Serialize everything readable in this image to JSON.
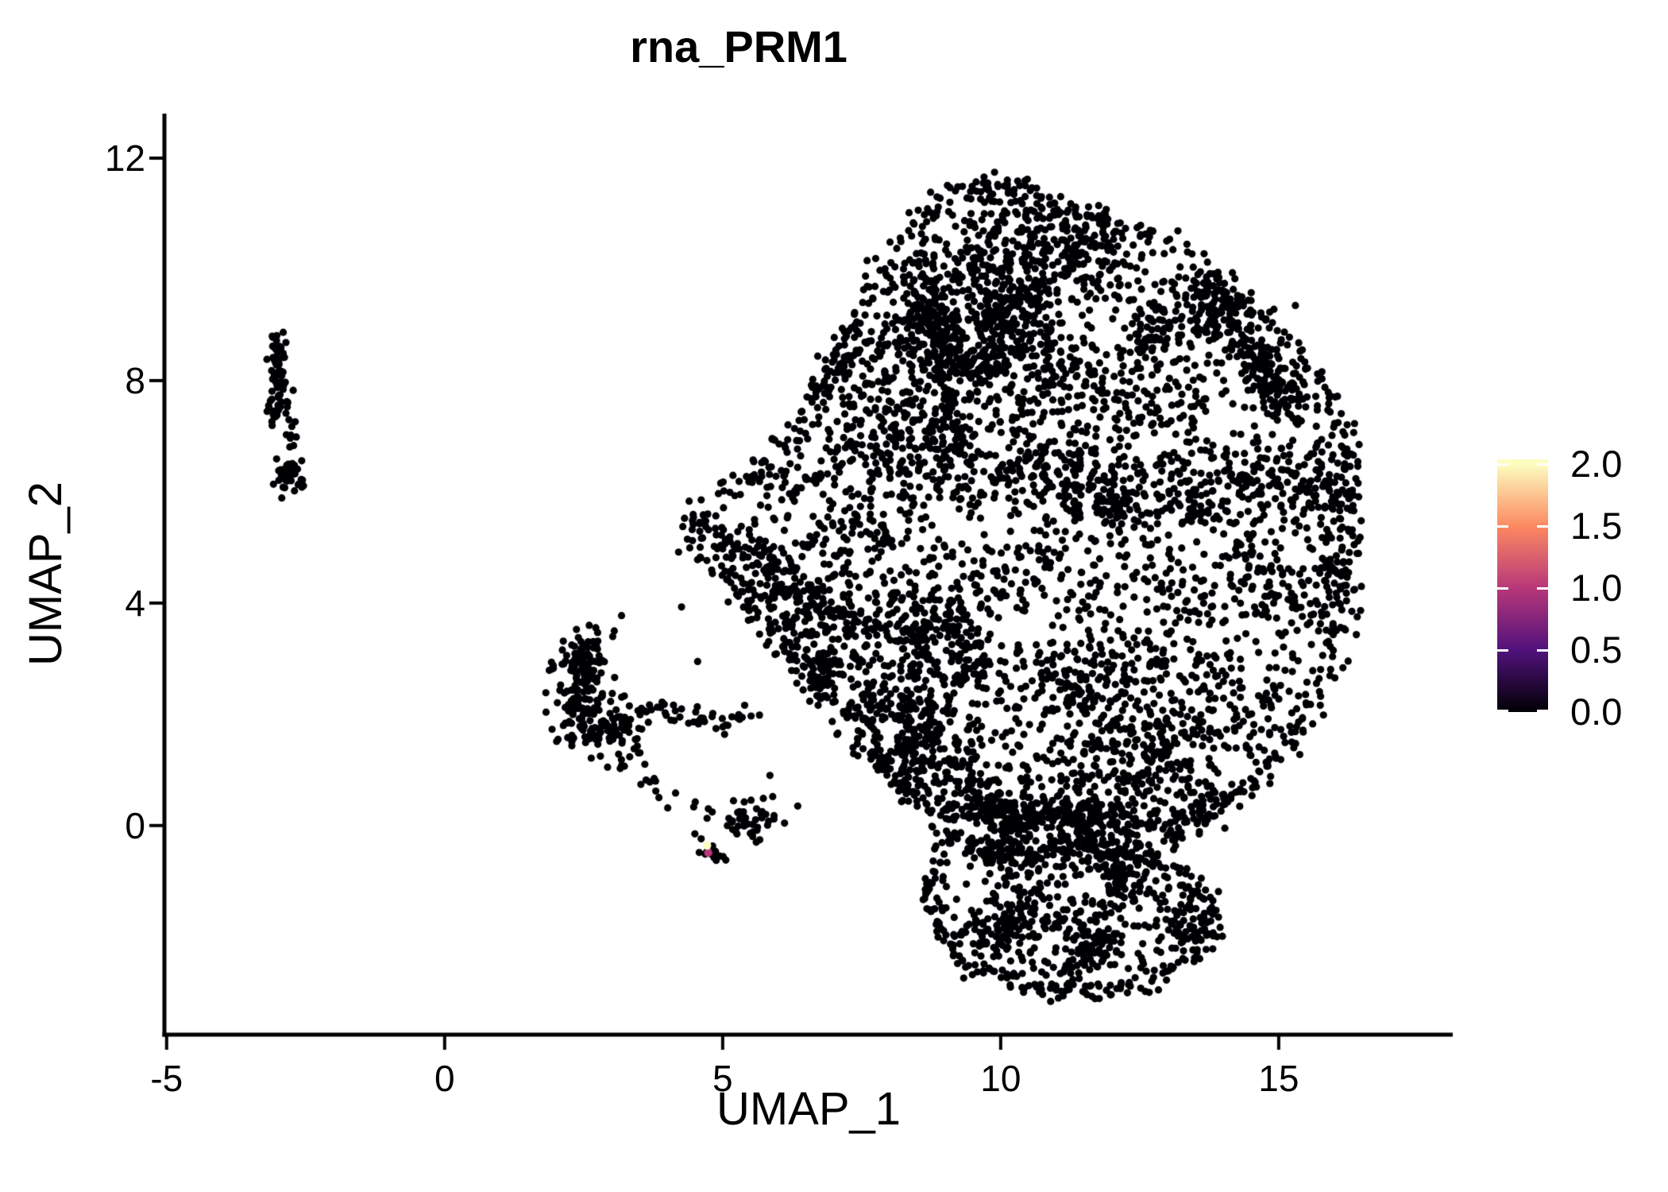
{
  "title": "rna_PRM1",
  "chart_data": {
    "type": "scatter",
    "title": "rna_PRM1",
    "xlabel": "UMAP_1",
    "ylabel": "UMAP_2",
    "xlim": [
      -5.04,
      18.13
    ],
    "ylim": [
      -3.76,
      12.8
    ],
    "grid": false,
    "x_ticks": [
      {
        "value": -5,
        "label": "-5"
      },
      {
        "value": 0,
        "label": "0"
      },
      {
        "value": 5,
        "label": "5"
      },
      {
        "value": 10,
        "label": "10"
      },
      {
        "value": 15,
        "label": "15"
      }
    ],
    "y_ticks": [
      {
        "value": 0,
        "label": "0"
      },
      {
        "value": 4,
        "label": "4"
      },
      {
        "value": 8,
        "label": "8"
      },
      {
        "value": 12,
        "label": "12"
      }
    ],
    "point_color": "#000004",
    "point_radius_px": 4.6,
    "legend": {
      "position": "right",
      "colormap": "magma",
      "range": [
        0,
        2.04
      ],
      "stops": [
        {
          "t": 0.0,
          "color": "#000004"
        },
        {
          "t": 0.25,
          "color": "#51127C"
        },
        {
          "t": 0.5,
          "color": "#B73779"
        },
        {
          "t": 0.75,
          "color": "#FC8961"
        },
        {
          "t": 1.0,
          "color": "#FCFDBF"
        }
      ],
      "ticks": [
        {
          "value": 2.0,
          "label": "2.0"
        },
        {
          "value": 1.5,
          "label": "1.5"
        },
        {
          "value": 1.0,
          "label": "1.0"
        },
        {
          "value": 0.5,
          "label": "0.5"
        },
        {
          "value": 0.0,
          "label": "0.0"
        }
      ]
    },
    "highlighted_cells": [
      {
        "x": 4.74,
        "y": -0.49,
        "value": 1.0,
        "color": "#B73779"
      },
      {
        "x": 4.72,
        "y": -0.36,
        "value": 2.0,
        "color": "#FCFDBF"
      }
    ],
    "seed": 1234567,
    "clusters": [
      {
        "name": "left-strand-upper",
        "type": "path",
        "points": [
          [
            -2.92,
            8.72
          ],
          [
            -3.03,
            8.25
          ],
          [
            -2.95,
            7.85
          ],
          [
            -3.02,
            7.45
          ],
          [
            -2.88,
            7.3
          ]
        ],
        "count": 78,
        "jitter": 0.1
      },
      {
        "name": "left-strand-mid",
        "type": "gauss",
        "center": [
          -2.8,
          6.95
        ],
        "sd": [
          0.1,
          0.12
        ],
        "count": 7
      },
      {
        "name": "left-strand-lower",
        "type": "gauss",
        "center": [
          -2.78,
          6.3
        ],
        "sd": [
          0.12,
          0.2
        ],
        "count": 42
      },
      {
        "name": "mid-blob-top",
        "type": "gauss",
        "center": [
          2.55,
          3.0
        ],
        "sd": [
          0.22,
          0.28
        ],
        "count": 70
      },
      {
        "name": "mid-blob-left",
        "type": "gauss",
        "center": [
          2.38,
          2.3
        ],
        "sd": [
          0.2,
          0.42
        ],
        "count": 85
      },
      {
        "name": "mid-blob-right",
        "type": "gauss",
        "center": [
          2.95,
          1.75
        ],
        "sd": [
          0.33,
          0.3
        ],
        "count": 90
      },
      {
        "name": "mid-chain",
        "type": "path",
        "points": [
          [
            3.5,
            2.1
          ],
          [
            4.35,
            2.0
          ],
          [
            4.95,
            1.9
          ],
          [
            5.6,
            1.95
          ]
        ],
        "count": 42,
        "jitter": 0.09
      },
      {
        "name": "mid-trail",
        "type": "path",
        "points": [
          [
            3.25,
            1.25
          ],
          [
            3.8,
            0.75
          ],
          [
            4.35,
            0.4
          ]
        ],
        "count": 16,
        "jitter": 0.14
      },
      {
        "name": "mid-lower-clump",
        "type": "gauss",
        "center": [
          5.45,
          0.08
        ],
        "sd": [
          0.32,
          0.17
        ],
        "count": 48
      },
      {
        "name": "expression-clump",
        "type": "gauss",
        "center": [
          4.78,
          -0.5
        ],
        "sd": [
          0.14,
          0.1
        ],
        "count": 14
      },
      {
        "name": "main-blob",
        "type": "polygon-clumps",
        "polygon": [
          [
            9.2,
            11.45
          ],
          [
            10.15,
            11.62
          ],
          [
            10.85,
            11.25
          ],
          [
            11.8,
            10.95
          ],
          [
            12.7,
            10.6
          ],
          [
            13.7,
            10.0
          ],
          [
            14.65,
            9.3
          ],
          [
            15.35,
            8.55
          ],
          [
            15.95,
            7.65
          ],
          [
            16.3,
            6.6
          ],
          [
            16.35,
            5.4
          ],
          [
            16.25,
            4.2
          ],
          [
            16.05,
            3.0
          ],
          [
            15.55,
            1.9
          ],
          [
            14.85,
            1.0
          ],
          [
            14.05,
            0.3
          ],
          [
            13.2,
            -0.25
          ],
          [
            12.3,
            -0.55
          ],
          [
            11.4,
            -0.45
          ],
          [
            10.5,
            -0.65
          ],
          [
            9.7,
            -0.55
          ],
          [
            9.0,
            -0.1
          ],
          [
            8.3,
            0.55
          ],
          [
            7.5,
            1.4
          ],
          [
            6.8,
            2.2
          ],
          [
            6.15,
            3.0
          ],
          [
            5.3,
            4.1
          ],
          [
            4.45,
            4.95
          ],
          [
            4.65,
            5.75
          ],
          [
            5.25,
            6.2
          ],
          [
            5.95,
            6.6
          ],
          [
            6.4,
            7.35
          ],
          [
            6.95,
            8.4
          ],
          [
            7.55,
            9.5
          ],
          [
            8.2,
            10.6
          ],
          [
            8.75,
            11.1
          ]
        ],
        "count": 4400,
        "clump_sd": [
          0.26,
          0.56
        ],
        "clump_n": [
          12,
          38
        ],
        "sprinkle": 420,
        "edge": {
          "step": 0.07,
          "jitter": 0.12,
          "keep": 0.85
        },
        "ridges": [
          [
            [
              8.5,
              10.3
            ],
            [
              9.35,
              6.6
            ]
          ],
          [
            [
              4.6,
              5.4
            ],
            [
              7.7,
              3.5
            ]
          ],
          [
            [
              13.7,
              9.8
            ],
            [
              15.1,
              7.5
            ]
          ],
          [
            [
              9.1,
              0.35
            ],
            [
              13.3,
              0.05
            ]
          ]
        ]
      },
      {
        "name": "bottom-lobe",
        "type": "polygon-clumps",
        "polygon": [
          [
            8.95,
            -0.35
          ],
          [
            9.8,
            -0.25
          ],
          [
            10.6,
            -0.5
          ],
          [
            11.4,
            -0.3
          ],
          [
            12.2,
            -0.4
          ],
          [
            13.0,
            -0.7
          ],
          [
            13.7,
            -1.15
          ],
          [
            13.9,
            -1.8
          ],
          [
            13.5,
            -2.35
          ],
          [
            12.8,
            -2.75
          ],
          [
            11.9,
            -2.95
          ],
          [
            11.0,
            -3.0
          ],
          [
            10.15,
            -2.85
          ],
          [
            9.4,
            -2.5
          ],
          [
            8.9,
            -1.95
          ],
          [
            8.65,
            -1.15
          ]
        ],
        "count": 520,
        "clump_sd": [
          0.18,
          0.4
        ],
        "clump_n": [
          10,
          24
        ],
        "sprinkle": 80,
        "edge": {
          "step": 0.06,
          "jitter": 0.1,
          "keep": 0.9
        },
        "ridges": []
      },
      {
        "name": "singles",
        "type": "points",
        "points": [
          [
            4.26,
            3.93
          ],
          [
            5.1,
            4.02
          ],
          [
            4.55,
            2.95
          ],
          [
            3.05,
            3.5
          ],
          [
            15.3,
            9.35
          ],
          [
            6.1,
            3.2
          ],
          [
            5.85,
            0.9
          ],
          [
            4.5,
            -0.15
          ],
          [
            2.6,
            3.6
          ],
          [
            6.35,
            0.35
          ]
        ]
      }
    ]
  }
}
